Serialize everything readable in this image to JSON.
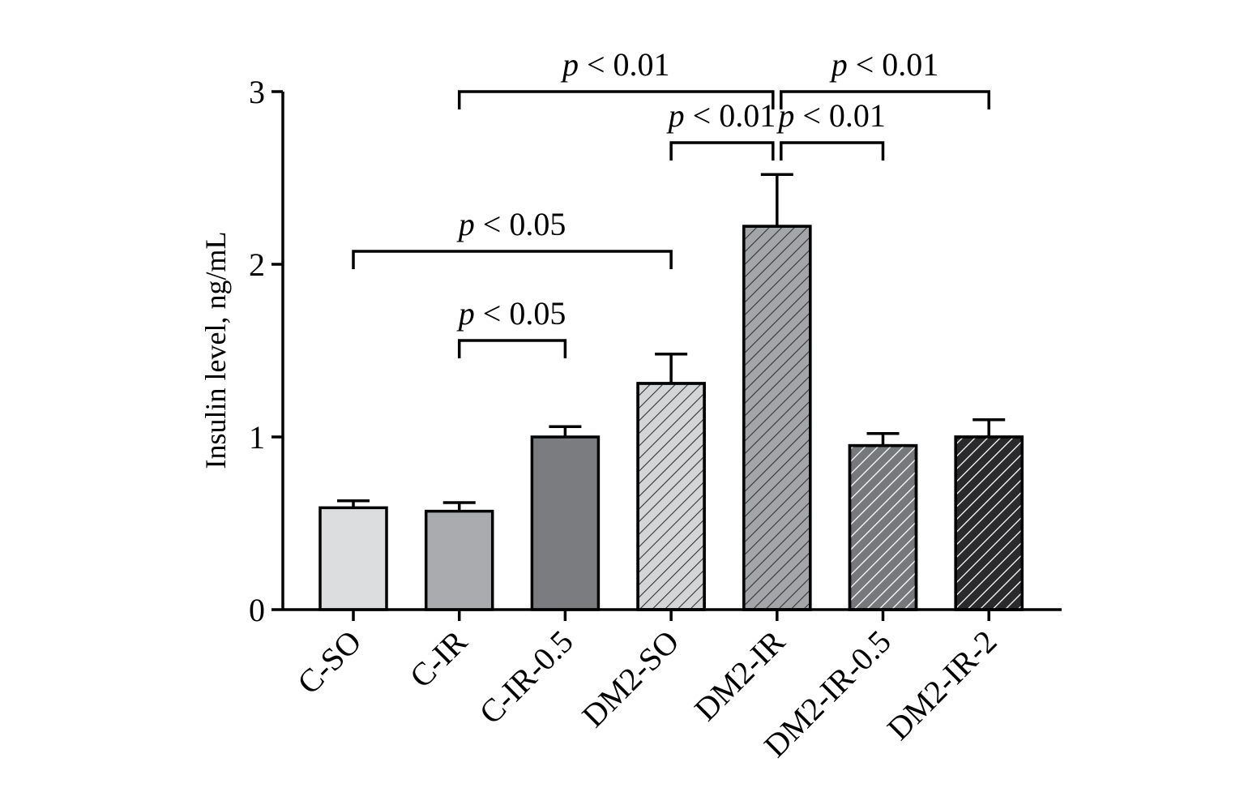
{
  "chart_data": {
    "type": "bar",
    "title": "",
    "xlabel": "",
    "ylabel": "Insulin level, ng/mL",
    "ylim": [
      0,
      3
    ],
    "yticks": [
      0,
      1,
      2,
      3
    ],
    "categories": [
      "C-SO",
      "C-IR",
      "C-IR-0.5",
      "DM2-SO",
      "DM2-IR",
      "DM2-IR-0.5",
      "DM2-IR-2"
    ],
    "values": [
      0.59,
      0.57,
      1.0,
      1.31,
      2.22,
      0.95,
      1.0
    ],
    "errors": [
      0.04,
      0.05,
      0.06,
      0.17,
      0.3,
      0.07,
      0.1
    ],
    "fills": [
      "#dcdddf",
      "#a9abae",
      "#7b7c7f",
      "#d4d5d7",
      "#a3a5a8",
      "#77787b",
      "#2a2a2c"
    ],
    "hatched": [
      false,
      false,
      false,
      true,
      true,
      true,
      true
    ],
    "grid": false,
    "legend": "none",
    "comparisons": [
      {
        "from": 1,
        "to": 4,
        "label_p": "p",
        "label_rest": " < 0.01"
      },
      {
        "from": 4,
        "to": 6,
        "label_p": "p",
        "label_rest": " < 0.01"
      },
      {
        "from": 3,
        "to": 4,
        "label_p": "p",
        "label_rest": " < 0.01"
      },
      {
        "from": 4,
        "to": 5,
        "label_p": "p",
        "label_rest": " < 0.01"
      },
      {
        "from": 0,
        "to": 3,
        "label_p": "p",
        "label_rest": " < 0.05"
      },
      {
        "from": 1,
        "to": 2,
        "label_p": "p",
        "label_rest": " < 0.05"
      }
    ]
  }
}
